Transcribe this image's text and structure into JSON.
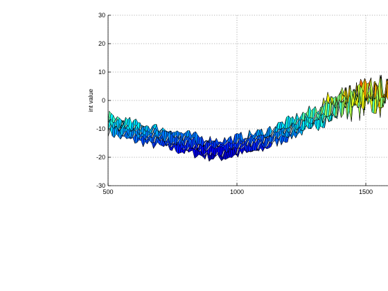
{
  "chart_data": {
    "type": "area",
    "title": "",
    "xlabel": "",
    "ylabel": "int value",
    "xlim": [
      500,
      1620
    ],
    "ylim": [
      -30,
      30
    ],
    "x_ticks": [
      500,
      1000,
      1500
    ],
    "y_ticks": [
      30,
      20,
      10,
      0,
      -10,
      -20,
      -30
    ],
    "grid": true,
    "colormap": "jet",
    "surface_series": [
      {
        "x": 500,
        "y": -8
      },
      {
        "x": 550,
        "y": -10
      },
      {
        "x": 600,
        "y": -11
      },
      {
        "x": 650,
        "y": -12
      },
      {
        "x": 700,
        "y": -13
      },
      {
        "x": 750,
        "y": -14
      },
      {
        "x": 800,
        "y": -15
      },
      {
        "x": 850,
        "y": -16
      },
      {
        "x": 900,
        "y": -17
      },
      {
        "x": 950,
        "y": -17
      },
      {
        "x": 1000,
        "y": -16
      },
      {
        "x": 1050,
        "y": -15
      },
      {
        "x": 1100,
        "y": -14
      },
      {
        "x": 1150,
        "y": -12
      },
      {
        "x": 1200,
        "y": -10
      },
      {
        "x": 1250,
        "y": -8
      },
      {
        "x": 1300,
        "y": -6
      },
      {
        "x": 1350,
        "y": -3
      },
      {
        "x": 1400,
        "y": -1
      },
      {
        "x": 1450,
        "y": 0
      },
      {
        "x": 1500,
        "y": 1
      },
      {
        "x": 1550,
        "y": 2
      },
      {
        "x": 1600,
        "y": 4
      }
    ],
    "band_half_width": 4
  }
}
